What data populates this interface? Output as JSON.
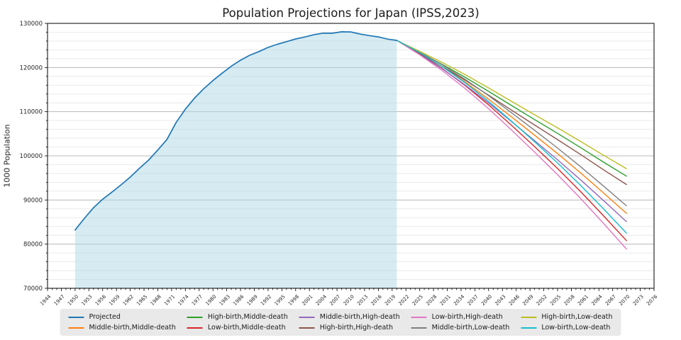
{
  "chart_data": {
    "type": "line",
    "title": "Population Projections for Japan (IPSS,2023)",
    "ylabel": "1000 Population",
    "xlabel": "",
    "xlim": [
      1944,
      2076
    ],
    "ylim": [
      70000,
      130000
    ],
    "y_ticks": [
      70000,
      80000,
      90000,
      100000,
      110000,
      120000,
      130000
    ],
    "y_minor_step": 2000,
    "x_major_step": 3,
    "x_minor_step": 1,
    "x_ticks": [
      1944,
      1947,
      1950,
      1953,
      1956,
      1959,
      1962,
      1965,
      1968,
      1971,
      1974,
      1977,
      1980,
      1983,
      1986,
      1989,
      1992,
      1995,
      1998,
      2001,
      2004,
      2007,
      2010,
      2013,
      2016,
      2019,
      2022,
      2025,
      2028,
      2031,
      2034,
      2037,
      2040,
      2043,
      2046,
      2049,
      2052,
      2055,
      2058,
      2061,
      2064,
      2067,
      2070,
      2073,
      2076
    ],
    "grid": {
      "horizontal_major": true,
      "horizontal_minor": true,
      "vertical": false
    },
    "legend_position": "bottom-center",
    "colors": {
      "axis": "#000000",
      "text": "#262626",
      "grid_major": "#b8b8b8",
      "grid_minor": "#e4e4e4",
      "legend_bg": "#e9e9e9",
      "area_fill": "#add8e6"
    },
    "historical_series": {
      "name": "Projected",
      "color": "#1f77b4",
      "area_fill_color": "#add8e6",
      "area_fill_opacity": 0.5,
      "points": [
        [
          1950,
          83200
        ],
        [
          1952,
          85808
        ],
        [
          1954,
          88239
        ],
        [
          1956,
          90172
        ],
        [
          1958,
          91767
        ],
        [
          1960,
          93419
        ],
        [
          1962,
          95181
        ],
        [
          1964,
          97182
        ],
        [
          1966,
          99036
        ],
        [
          1968,
          101331
        ],
        [
          1970,
          103720
        ],
        [
          1972,
          107595
        ],
        [
          1974,
          110573
        ],
        [
          1976,
          113094
        ],
        [
          1978,
          115190
        ],
        [
          1980,
          117060
        ],
        [
          1982,
          118728
        ],
        [
          1984,
          120305
        ],
        [
          1986,
          121660
        ],
        [
          1988,
          122783
        ],
        [
          1990,
          123611
        ],
        [
          1992,
          124567
        ],
        [
          1994,
          125265
        ],
        [
          1996,
          125864
        ],
        [
          1998,
          126472
        ],
        [
          2000,
          126926
        ],
        [
          2002,
          127445
        ],
        [
          2004,
          127787
        ],
        [
          2006,
          127770
        ],
        [
          2008,
          128084
        ],
        [
          2010,
          128057
        ],
        [
          2012,
          127593
        ],
        [
          2014,
          127237
        ],
        [
          2016,
          126933
        ],
        [
          2018,
          126443
        ],
        [
          2020,
          126146
        ]
      ]
    },
    "projection_x": [
      2020,
      2025,
      2030,
      2035,
      2040,
      2045,
      2050,
      2055,
      2060,
      2065,
      2070
    ],
    "projection_series": [
      {
        "name": "Middle-birth,Middle-death",
        "color": "#ff7f0e",
        "values": [
          126146,
          123262,
          120116,
          116639,
          112837,
          108801,
          104686,
          100508,
          96148,
          91592,
          86996
        ]
      },
      {
        "name": "High-birth,Middle-death",
        "color": "#2ca02c",
        "values": [
          126146,
          123428,
          120658,
          117721,
          114598,
          111387,
          108206,
          105082,
          101874,
          98579,
          95396
        ]
      },
      {
        "name": "Low-birth,Middle-death",
        "color": "#d62728",
        "values": [
          126146,
          123139,
          119716,
          115840,
          111537,
          106893,
          102088,
          97132,
          91921,
          86435,
          80796
        ]
      },
      {
        "name": "Middle-birth,High-death",
        "color": "#9467bd",
        "values": [
          126146,
          122994,
          119632,
          115957,
          111965,
          107747,
          103456,
          99106,
          94579,
          89858,
          85096
        ]
      },
      {
        "name": "High-birth,High-death",
        "color": "#8c564b",
        "values": [
          126146,
          123160,
          120174,
          117039,
          113726,
          110333,
          106976,
          103680,
          100305,
          96845,
          93496
        ]
      },
      {
        "name": "Low-birth,High-death",
        "color": "#e377c2",
        "values": [
          126146,
          122871,
          119232,
          115158,
          110665,
          105839,
          100858,
          95730,
          90352,
          84701,
          78896
        ]
      },
      {
        "name": "Middle-birth,Low-death",
        "color": "#7f7f7f",
        "values": [
          126146,
          123502,
          120549,
          117249,
          113617,
          109744,
          105786,
          101762,
          97552,
          93143,
          88696
        ]
      },
      {
        "name": "High-birth,Low-death",
        "color": "#bcbd22",
        "values": [
          126146,
          123668,
          121091,
          118331,
          115378,
          112330,
          109306,
          106336,
          103278,
          100130,
          97096
        ]
      },
      {
        "name": "Low-birth,Low-death",
        "color": "#17becf",
        "values": [
          126146,
          123379,
          120149,
          116450,
          112317,
          107836,
          103188,
          98386,
          93325,
          87986,
          82496
        ]
      }
    ],
    "legend_entries": [
      {
        "label": "Projected",
        "color": "#1f77b4"
      },
      {
        "label": "Middle-birth,Middle-death",
        "color": "#ff7f0e"
      },
      {
        "label": "High-birth,Middle-death",
        "color": "#2ca02c"
      },
      {
        "label": "Low-birth,Middle-death",
        "color": "#d62728"
      },
      {
        "label": "Middle-birth,High-death",
        "color": "#9467bd"
      },
      {
        "label": "High-birth,High-death",
        "color": "#8c564b"
      },
      {
        "label": "Low-birth,High-death",
        "color": "#e377c2"
      },
      {
        "label": "Middle-birth,Low-death",
        "color": "#7f7f7f"
      },
      {
        "label": "High-birth,Low-death",
        "color": "#bcbd22"
      },
      {
        "label": "Low-birth,Low-death",
        "color": "#17becf"
      }
    ]
  }
}
